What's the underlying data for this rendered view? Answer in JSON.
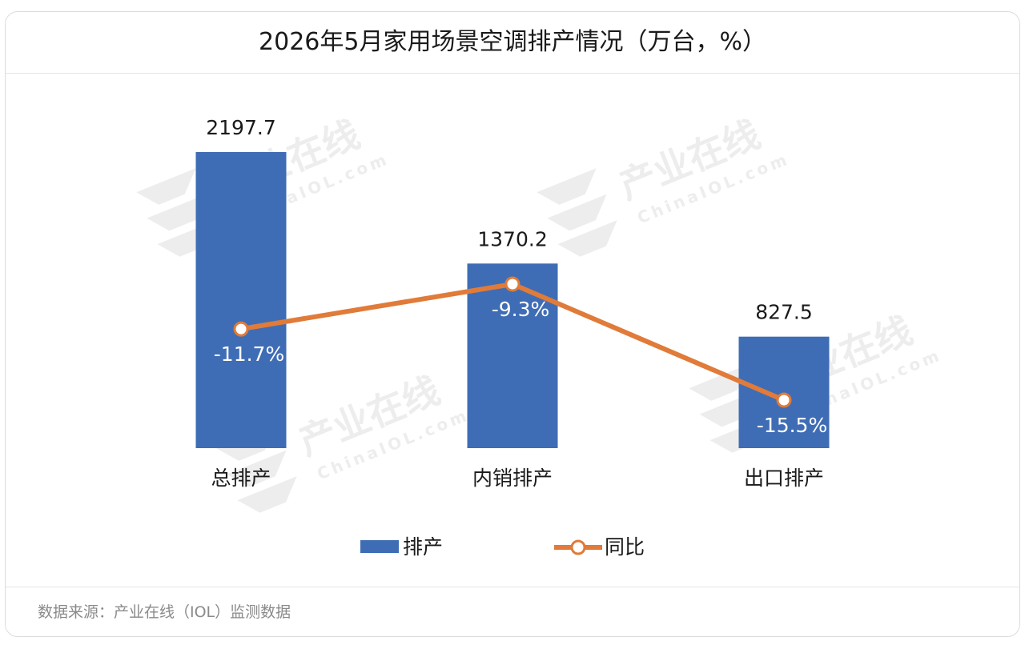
{
  "title": "2026年5月家用场景空调排产情况（万台，%）",
  "footer": "数据来源：产业在线（IOL）监测数据",
  "watermark": {
    "cn": "产业在线",
    "en": "ChinaIOL.com"
  },
  "colors": {
    "bar": "#3F6DB5",
    "line": "#E07B39",
    "bar_label": "#1a1a1a",
    "line_label": "#ffffff"
  },
  "chart_data": {
    "type": "bar",
    "categories": [
      "总排产",
      "内销排产",
      "出口排产"
    ],
    "series": [
      {
        "name": "排产",
        "type": "bar",
        "values": [
          2197.7,
          1370.2,
          827.5
        ],
        "labels": [
          "2197.7",
          "1370.2",
          "827.5"
        ]
      },
      {
        "name": "同比",
        "type": "line",
        "values": [
          -11.7,
          -9.3,
          -15.5
        ],
        "labels": [
          "-11.7%",
          "-9.3%",
          "-15.5%"
        ]
      }
    ],
    "legend": "bottom"
  }
}
